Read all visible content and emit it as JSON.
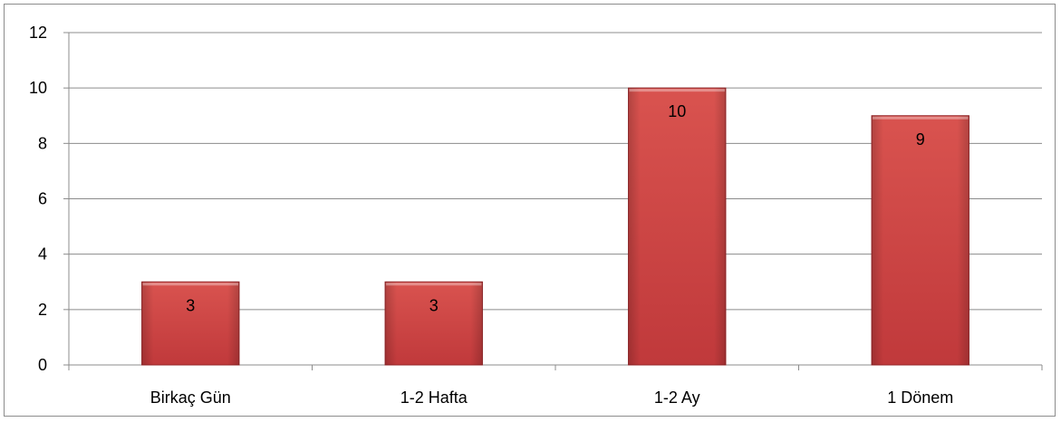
{
  "chart_data": {
    "type": "bar",
    "title": "",
    "xlabel": "",
    "ylabel": "",
    "categories": [
      "Birkaç Gün",
      "1-2 Hafta",
      "1-2 Ay",
      "1 Dönem"
    ],
    "values": [
      3,
      3,
      10,
      9
    ],
    "ylim": [
      0,
      12
    ],
    "yticks": [
      "0",
      "2",
      "4",
      "6",
      "8",
      "10",
      "12"
    ],
    "grid": true,
    "legend": "none",
    "bar_color": "#c0393b",
    "bar_color_light": "#d9534f",
    "bar_color_dark": "#962628",
    "data_labels": [
      "3",
      "3",
      "10",
      "9"
    ]
  }
}
